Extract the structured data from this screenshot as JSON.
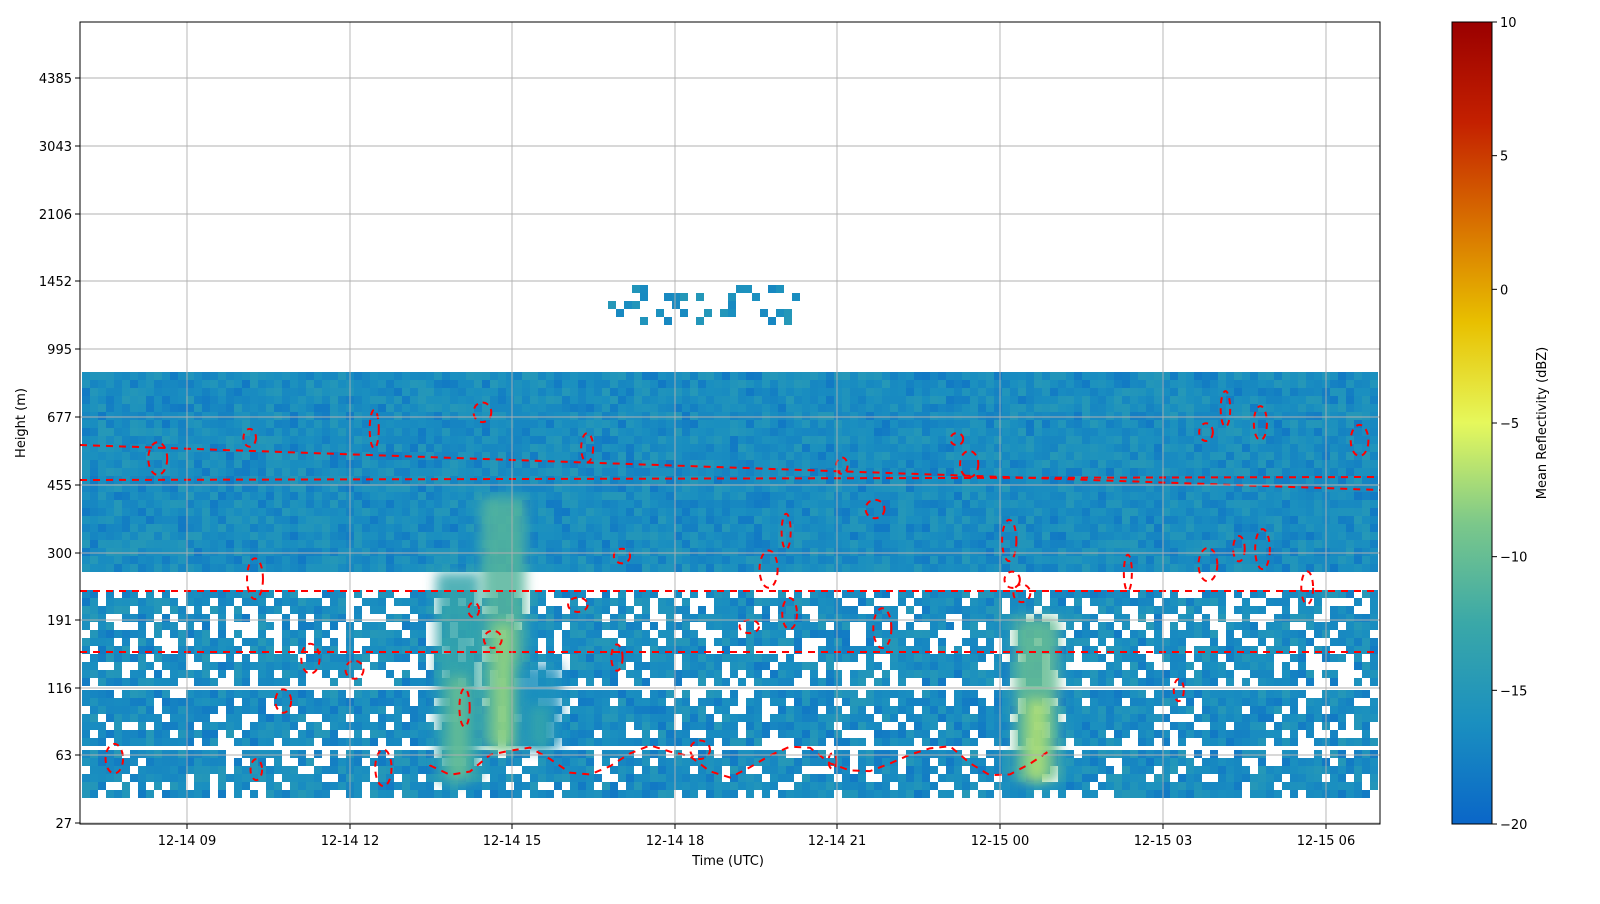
{
  "chart_data": {
    "type": "heatmap",
    "xlabel": "Time (UTC)",
    "ylabel": "Height (m)",
    "x_ticks": [
      "12-14 09",
      "12-14 12",
      "12-14 15",
      "12-14 18",
      "12-14 21",
      "12-15 00",
      "12-15 03",
      "12-15 06"
    ],
    "x_range": [
      "12-14 07:00",
      "12-15 07:00"
    ],
    "y_ticks": [
      "27",
      "63",
      "116",
      "191",
      "300",
      "455",
      "677",
      "995",
      "1452",
      "2106",
      "3043",
      "4385"
    ],
    "y_ticks_numeric": [
      27,
      63,
      116,
      191,
      300,
      455,
      677,
      995,
      1452,
      2106,
      3043,
      4385
    ],
    "y_scale": "nonlinear (range-gate index axis)",
    "grid": true,
    "colorbar": {
      "label": "Mean Reflectivity (dBZ)",
      "ticks": [
        "10",
        "5",
        "0",
        "−5",
        "−10",
        "−15",
        "−20"
      ],
      "range": [
        -20,
        10
      ],
      "colormap": [
        "#0a66c8",
        "#1a8fc0",
        "#3aa8a8",
        "#7cc88a",
        "#e6f85c",
        "#e8c000",
        "#d87000",
        "#c42000",
        "#9a0000"
      ]
    },
    "contour_color": "#ff0000",
    "contour_style": "dashed",
    "dominant_value_dbz": -16,
    "hotspots": [
      {
        "time": "12-14 14:00",
        "height_range": [
          36,
          150
        ],
        "peak_dbz": -10
      },
      {
        "time": "12-14 14:50",
        "height_range": [
          45,
          250
        ],
        "peak_dbz": -8
      },
      {
        "time": "12-14 15:30",
        "height_range": [
          45,
          80
        ],
        "peak_dbz": -13
      },
      {
        "time": "12-15 00:40",
        "height_range": [
          36,
          110
        ],
        "peak_dbz": -7
      }
    ]
  }
}
